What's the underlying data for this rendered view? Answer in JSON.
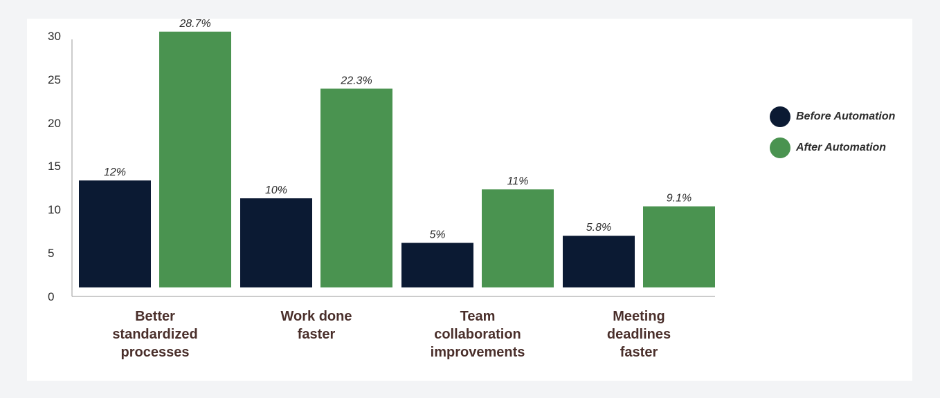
{
  "chart_data": {
    "type": "bar",
    "title": "",
    "xlabel": "",
    "ylabel": "",
    "ylim": [
      0,
      30
    ],
    "yticks": [
      0,
      5,
      10,
      15,
      20,
      25,
      30
    ],
    "categories": [
      "Better standardized processes",
      "Work done faster",
      "Team collaboration improvements",
      "Meeting deadlines faster"
    ],
    "category_lines": [
      [
        "Better",
        "standardized",
        "processes"
      ],
      [
        "Work done",
        "faster"
      ],
      [
        "Team",
        "collaboration",
        "improvements"
      ],
      [
        "Meeting",
        "deadlines",
        "faster"
      ]
    ],
    "series": [
      {
        "name": "Before Automation",
        "values": [
          12,
          10,
          5,
          5.8
        ],
        "labels": [
          "12%",
          "10%",
          "5%",
          "5.8%"
        ],
        "color": "#0b1a33"
      },
      {
        "name": "After Automation",
        "values": [
          28.7,
          22.3,
          11,
          9.1
        ],
        "labels": [
          "28.7%",
          "22.3%",
          "11%",
          "9.1%"
        ],
        "color": "#4a9350"
      }
    ],
    "grid": false,
    "legend_position": "right"
  },
  "legend": {
    "items": [
      {
        "label": "Before Automation",
        "color": "#0b1a33"
      },
      {
        "label": "After Automation",
        "color": "#4a9350"
      }
    ]
  }
}
